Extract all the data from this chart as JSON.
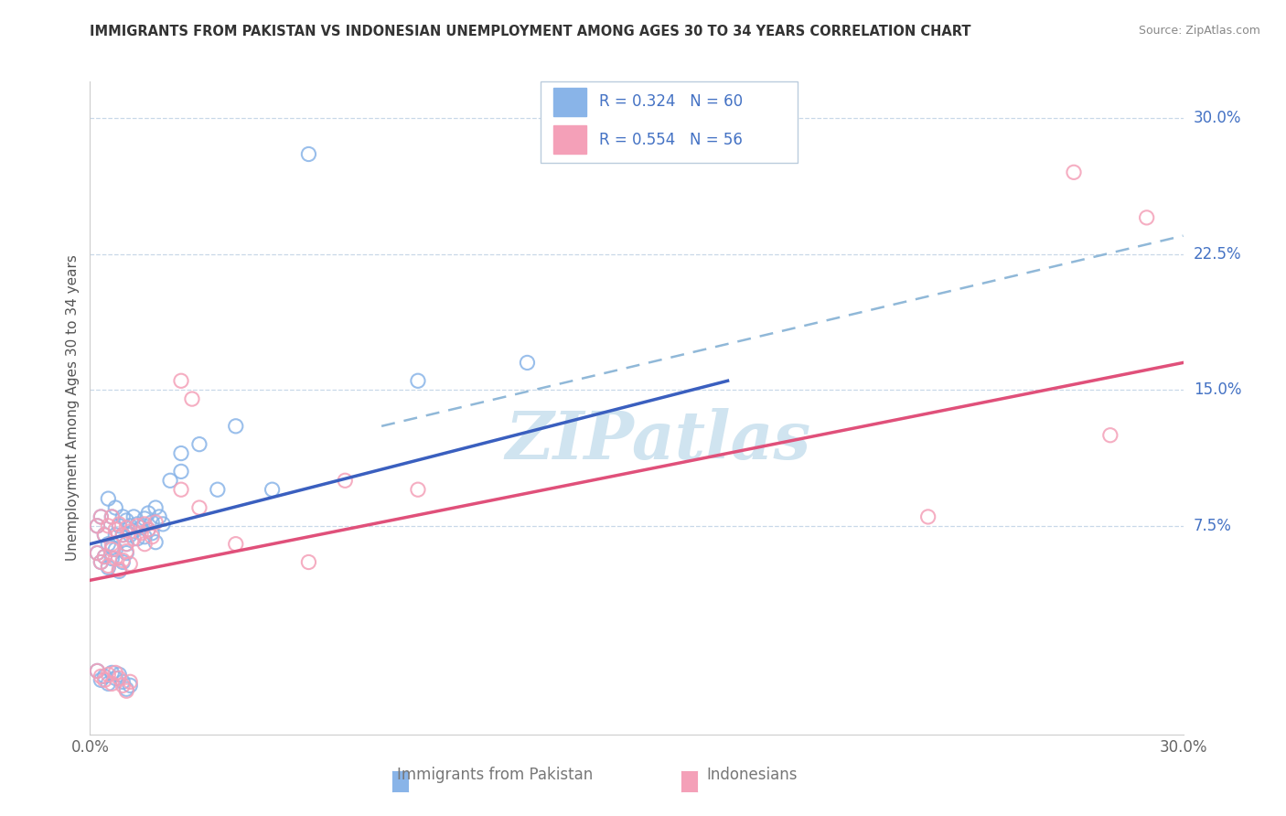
{
  "title": "IMMIGRANTS FROM PAKISTAN VS INDONESIAN UNEMPLOYMENT AMONG AGES 30 TO 34 YEARS CORRELATION CHART",
  "source": "Source: ZipAtlas.com",
  "ylabel": "Unemployment Among Ages 30 to 34 years",
  "x_min": 0.0,
  "x_max": 0.3,
  "y_min": -0.04,
  "y_max": 0.32,
  "x_tick_labels": [
    "0.0%",
    "30.0%"
  ],
  "y_ticks": [
    0.075,
    0.15,
    0.225,
    0.3
  ],
  "y_tick_labels": [
    "7.5%",
    "15.0%",
    "22.5%",
    "30.0%"
  ],
  "color_blue": "#89b4e8",
  "color_pink": "#f4a0b8",
  "color_line_blue": "#3a5fbf",
  "color_line_pink": "#e0507a",
  "color_line_dashed": "#90b8d8",
  "color_grid": "#c8d8e8",
  "color_tick_label": "#4472c4",
  "watermark_color": "#d0e4f0",
  "blue_scatter": [
    [
      0.002,
      0.075
    ],
    [
      0.003,
      0.08
    ],
    [
      0.004,
      0.07
    ],
    [
      0.005,
      0.09
    ],
    [
      0.005,
      0.065
    ],
    [
      0.006,
      0.08
    ],
    [
      0.007,
      0.07
    ],
    [
      0.007,
      0.085
    ],
    [
      0.008,
      0.075
    ],
    [
      0.009,
      0.08
    ],
    [
      0.009,
      0.07
    ],
    [
      0.01,
      0.078
    ],
    [
      0.01,
      0.065
    ],
    [
      0.011,
      0.075
    ],
    [
      0.011,
      0.07
    ],
    [
      0.012,
      0.08
    ],
    [
      0.012,
      0.072
    ],
    [
      0.013,
      0.076
    ],
    [
      0.013,
      0.068
    ],
    [
      0.014,
      0.074
    ],
    [
      0.015,
      0.079
    ],
    [
      0.015,
      0.069
    ],
    [
      0.016,
      0.073
    ],
    [
      0.016,
      0.082
    ],
    [
      0.017,
      0.077
    ],
    [
      0.017,
      0.071
    ],
    [
      0.018,
      0.085
    ],
    [
      0.018,
      0.066
    ],
    [
      0.019,
      0.08
    ],
    [
      0.02,
      0.076
    ],
    [
      0.002,
      0.06
    ],
    [
      0.003,
      0.055
    ],
    [
      0.004,
      0.058
    ],
    [
      0.005,
      0.052
    ],
    [
      0.006,
      0.063
    ],
    [
      0.006,
      0.057
    ],
    [
      0.007,
      0.062
    ],
    [
      0.008,
      0.05
    ],
    [
      0.009,
      0.055
    ],
    [
      0.01,
      0.06
    ],
    [
      0.002,
      -0.005
    ],
    [
      0.003,
      -0.01
    ],
    [
      0.004,
      -0.008
    ],
    [
      0.005,
      -0.012
    ],
    [
      0.006,
      -0.006
    ],
    [
      0.007,
      -0.009
    ],
    [
      0.008,
      -0.007
    ],
    [
      0.009,
      -0.011
    ],
    [
      0.01,
      -0.015
    ],
    [
      0.011,
      -0.013
    ],
    [
      0.022,
      0.1
    ],
    [
      0.025,
      0.115
    ],
    [
      0.025,
      0.105
    ],
    [
      0.03,
      0.12
    ],
    [
      0.035,
      0.095
    ],
    [
      0.04,
      0.13
    ],
    [
      0.05,
      0.095
    ],
    [
      0.06,
      0.28
    ],
    [
      0.09,
      0.155
    ],
    [
      0.12,
      0.165
    ]
  ],
  "pink_scatter": [
    [
      0.002,
      0.075
    ],
    [
      0.003,
      0.08
    ],
    [
      0.004,
      0.07
    ],
    [
      0.005,
      0.075
    ],
    [
      0.006,
      0.065
    ],
    [
      0.006,
      0.08
    ],
    [
      0.007,
      0.073
    ],
    [
      0.008,
      0.076
    ],
    [
      0.009,
      0.07
    ],
    [
      0.01,
      0.074
    ],
    [
      0.01,
      0.065
    ],
    [
      0.011,
      0.072
    ],
    [
      0.012,
      0.068
    ],
    [
      0.013,
      0.075
    ],
    [
      0.014,
      0.071
    ],
    [
      0.015,
      0.076
    ],
    [
      0.015,
      0.065
    ],
    [
      0.016,
      0.073
    ],
    [
      0.017,
      0.069
    ],
    [
      0.018,
      0.077
    ],
    [
      0.002,
      0.06
    ],
    [
      0.003,
      0.055
    ],
    [
      0.004,
      0.058
    ],
    [
      0.005,
      0.053
    ],
    [
      0.006,
      0.062
    ],
    [
      0.007,
      0.057
    ],
    [
      0.008,
      0.051
    ],
    [
      0.009,
      0.056
    ],
    [
      0.01,
      0.061
    ],
    [
      0.011,
      0.054
    ],
    [
      0.002,
      -0.005
    ],
    [
      0.003,
      -0.008
    ],
    [
      0.004,
      -0.01
    ],
    [
      0.005,
      -0.007
    ],
    [
      0.006,
      -0.012
    ],
    [
      0.007,
      -0.006
    ],
    [
      0.008,
      -0.009
    ],
    [
      0.009,
      -0.013
    ],
    [
      0.01,
      -0.016
    ],
    [
      0.011,
      -0.011
    ],
    [
      0.025,
      0.155
    ],
    [
      0.028,
      0.145
    ],
    [
      0.03,
      0.085
    ],
    [
      0.025,
      0.095
    ],
    [
      0.04,
      0.065
    ],
    [
      0.06,
      0.055
    ],
    [
      0.07,
      0.1
    ],
    [
      0.09,
      0.095
    ],
    [
      0.23,
      0.08
    ],
    [
      0.28,
      0.125
    ],
    [
      0.29,
      0.245
    ],
    [
      0.27,
      0.27
    ]
  ],
  "blue_line": [
    [
      0.0,
      0.065
    ],
    [
      0.175,
      0.155
    ]
  ],
  "pink_line": [
    [
      0.0,
      0.045
    ],
    [
      0.3,
      0.165
    ]
  ],
  "dashed_line": [
    [
      0.08,
      0.13
    ],
    [
      0.3,
      0.235
    ]
  ]
}
